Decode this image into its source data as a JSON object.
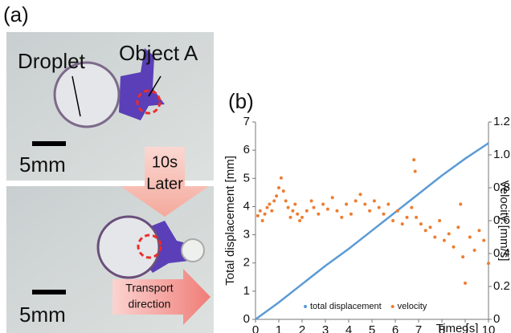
{
  "panel_a": {
    "label": "(a)",
    "droplet": "Droplet",
    "object": "Object A",
    "scale_top": "5mm",
    "arrow_top": "10s",
    "arrow_bottom": "Later",
    "scale_bottom": "5mm",
    "transport_1": "Transport",
    "transport_2": "direction"
  },
  "chart_data": {
    "type": "line",
    "panel_label": "(b)",
    "x_label": "Time [s]",
    "y_label": "Total displacement [mm]",
    "y2_label": "Velocity [mm/s]",
    "xlim": [
      0,
      10
    ],
    "xticks": [
      0,
      1,
      2,
      3,
      4,
      5,
      6,
      7,
      8,
      9,
      10
    ],
    "ylim": [
      0,
      7
    ],
    "yticks": [
      0,
      1,
      2,
      3,
      4,
      5,
      6,
      7
    ],
    "y2lim": [
      0,
      1.2
    ],
    "y2ticks": [
      0,
      0.2,
      0.4,
      0.6,
      0.8,
      {
        "value": 1,
        "label": "1.0"
      },
      1.2
    ],
    "grid": false,
    "legend": "bottom right",
    "series": [
      {
        "name": "total displacement",
        "color": "#5b9bd5",
        "type": "line",
        "x": [
          0,
          1,
          2,
          3,
          4,
          5,
          6,
          7,
          8,
          9,
          10
        ],
        "values": [
          0,
          0.6,
          1.25,
          1.9,
          2.5,
          3.15,
          3.8,
          4.45,
          5.1,
          5.7,
          6.25
        ]
      },
      {
        "name": "velocity",
        "color": "#ed7d31",
        "type": "scatter",
        "axis": "y2",
        "x": [
          0.1,
          0.2,
          0.3,
          0.4,
          0.5,
          0.6,
          0.7,
          0.8,
          0.9,
          1.0,
          1.1,
          1.2,
          1.3,
          1.4,
          1.5,
          1.6,
          1.7,
          1.8,
          1.9,
          2.0,
          2.2,
          2.4,
          2.5,
          2.7,
          2.9,
          3.1,
          3.3,
          3.5,
          3.7,
          3.9,
          4.1,
          4.3,
          4.5,
          4.7,
          4.9,
          5.1,
          5.3,
          5.5,
          5.7,
          5.9,
          6.1,
          6.3,
          6.5,
          6.7,
          6.8,
          6.85,
          6.9,
          7.1,
          7.3,
          7.5,
          7.7,
          7.9,
          8.1,
          8.3,
          8.5,
          8.7,
          8.8,
          8.9,
          9.0,
          9.2,
          9.4,
          9.6,
          9.8,
          10.0
        ],
        "values": [
          0.63,
          0.66,
          0.6,
          0.64,
          0.68,
          0.7,
          0.66,
          0.72,
          0.75,
          0.8,
          0.86,
          0.78,
          0.72,
          0.68,
          0.62,
          0.66,
          0.7,
          0.64,
          0.6,
          0.62,
          0.66,
          0.72,
          0.68,
          0.64,
          0.7,
          0.67,
          0.74,
          0.66,
          0.62,
          0.7,
          0.64,
          0.72,
          0.76,
          0.7,
          0.66,
          0.72,
          0.68,
          0.64,
          0.7,
          0.6,
          0.66,
          0.58,
          0.62,
          0.68,
          0.97,
          0.9,
          0.62,
          0.58,
          0.54,
          0.56,
          0.5,
          0.6,
          0.48,
          0.52,
          0.44,
          0.56,
          0.7,
          0.38,
          0.22,
          0.5,
          0.42,
          0.54,
          0.48,
          0.34
        ]
      }
    ]
  }
}
